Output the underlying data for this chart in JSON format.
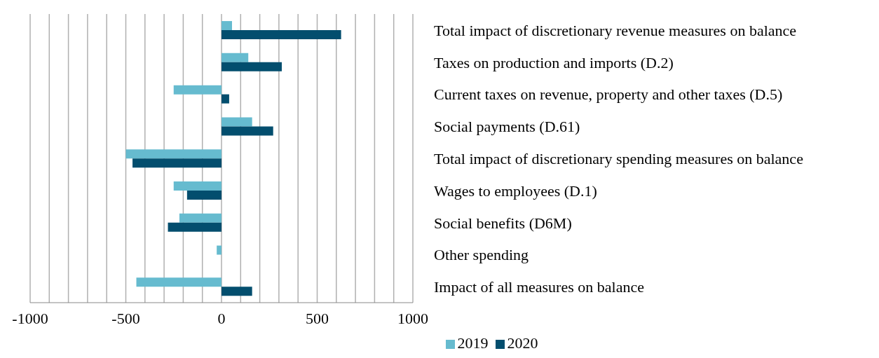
{
  "chart_data": {
    "type": "bar",
    "orientation": "horizontal",
    "categories": [
      "Total impact of discretionary revenue measures on balance",
      "Taxes on production and imports (D.2)",
      "Current taxes on revenue, property and other taxes (D.5)",
      "Social payments (D.61)",
      "Total impact of discretionary spending measures on balance",
      "Wages to employees (D.1)",
      "Social benefits (D6M)",
      "Other spending",
      "Impact of all measures on balance"
    ],
    "series": [
      {
        "name": "2019",
        "color": "#66bbcf",
        "values": [
          55,
          140,
          -250,
          160,
          -500,
          -250,
          -220,
          -25,
          -445
        ]
      },
      {
        "name": "2020",
        "color": "#034e6e",
        "values": [
          625,
          315,
          40,
          270,
          -465,
          -180,
          -280,
          null,
          160
        ]
      }
    ],
    "xlim": [
      -1000,
      1000
    ],
    "xticks": [
      -1000,
      {
        "value": -900,
        "label": null
      },
      {
        "value": -800,
        "label": null
      },
      {
        "value": -700,
        "label": null
      },
      {
        "value": -600,
        "label": null
      },
      -500,
      {
        "value": -400,
        "label": null
      },
      {
        "value": -300,
        "label": null
      },
      {
        "value": -200,
        "label": null
      },
      {
        "value": -100,
        "label": null
      },
      0,
      {
        "value": 100,
        "label": null
      },
      {
        "value": 200,
        "label": null
      },
      {
        "value": 300,
        "label": null
      },
      {
        "value": 400,
        "label": null
      },
      500,
      {
        "value": 600,
        "label": null
      },
      {
        "value": 700,
        "label": null
      },
      {
        "value": 800,
        "label": null
      },
      {
        "value": 900,
        "label": null
      },
      1000
    ],
    "grid": "x",
    "legend": "bottom"
  }
}
